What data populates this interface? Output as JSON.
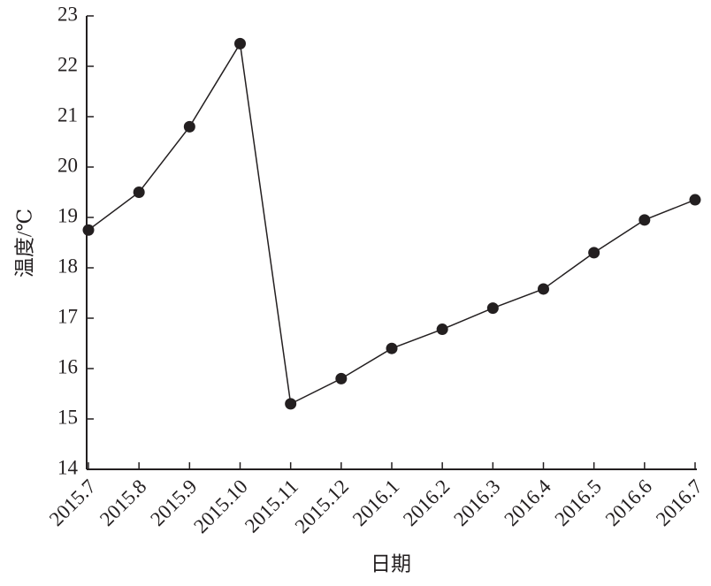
{
  "chart_data": {
    "type": "line",
    "ylabel": "温度/℃",
    "xlabel": "日期",
    "categories": [
      "2015.7",
      "2015.8",
      "2015.9",
      "2015.10",
      "2015.11",
      "2015.12",
      "2016.1",
      "2016.2",
      "2016.3",
      "2016.4",
      "2016.5",
      "2016.6",
      "2016.7"
    ],
    "values": [
      18.75,
      19.5,
      20.8,
      22.45,
      15.3,
      15.8,
      16.4,
      16.78,
      17.2,
      17.58,
      18.3,
      18.95,
      19.35
    ],
    "color": "#231f20",
    "ylim": [
      14,
      23
    ],
    "yticks": [
      14,
      15,
      16,
      17,
      18,
      19,
      20,
      21,
      22,
      23
    ]
  }
}
